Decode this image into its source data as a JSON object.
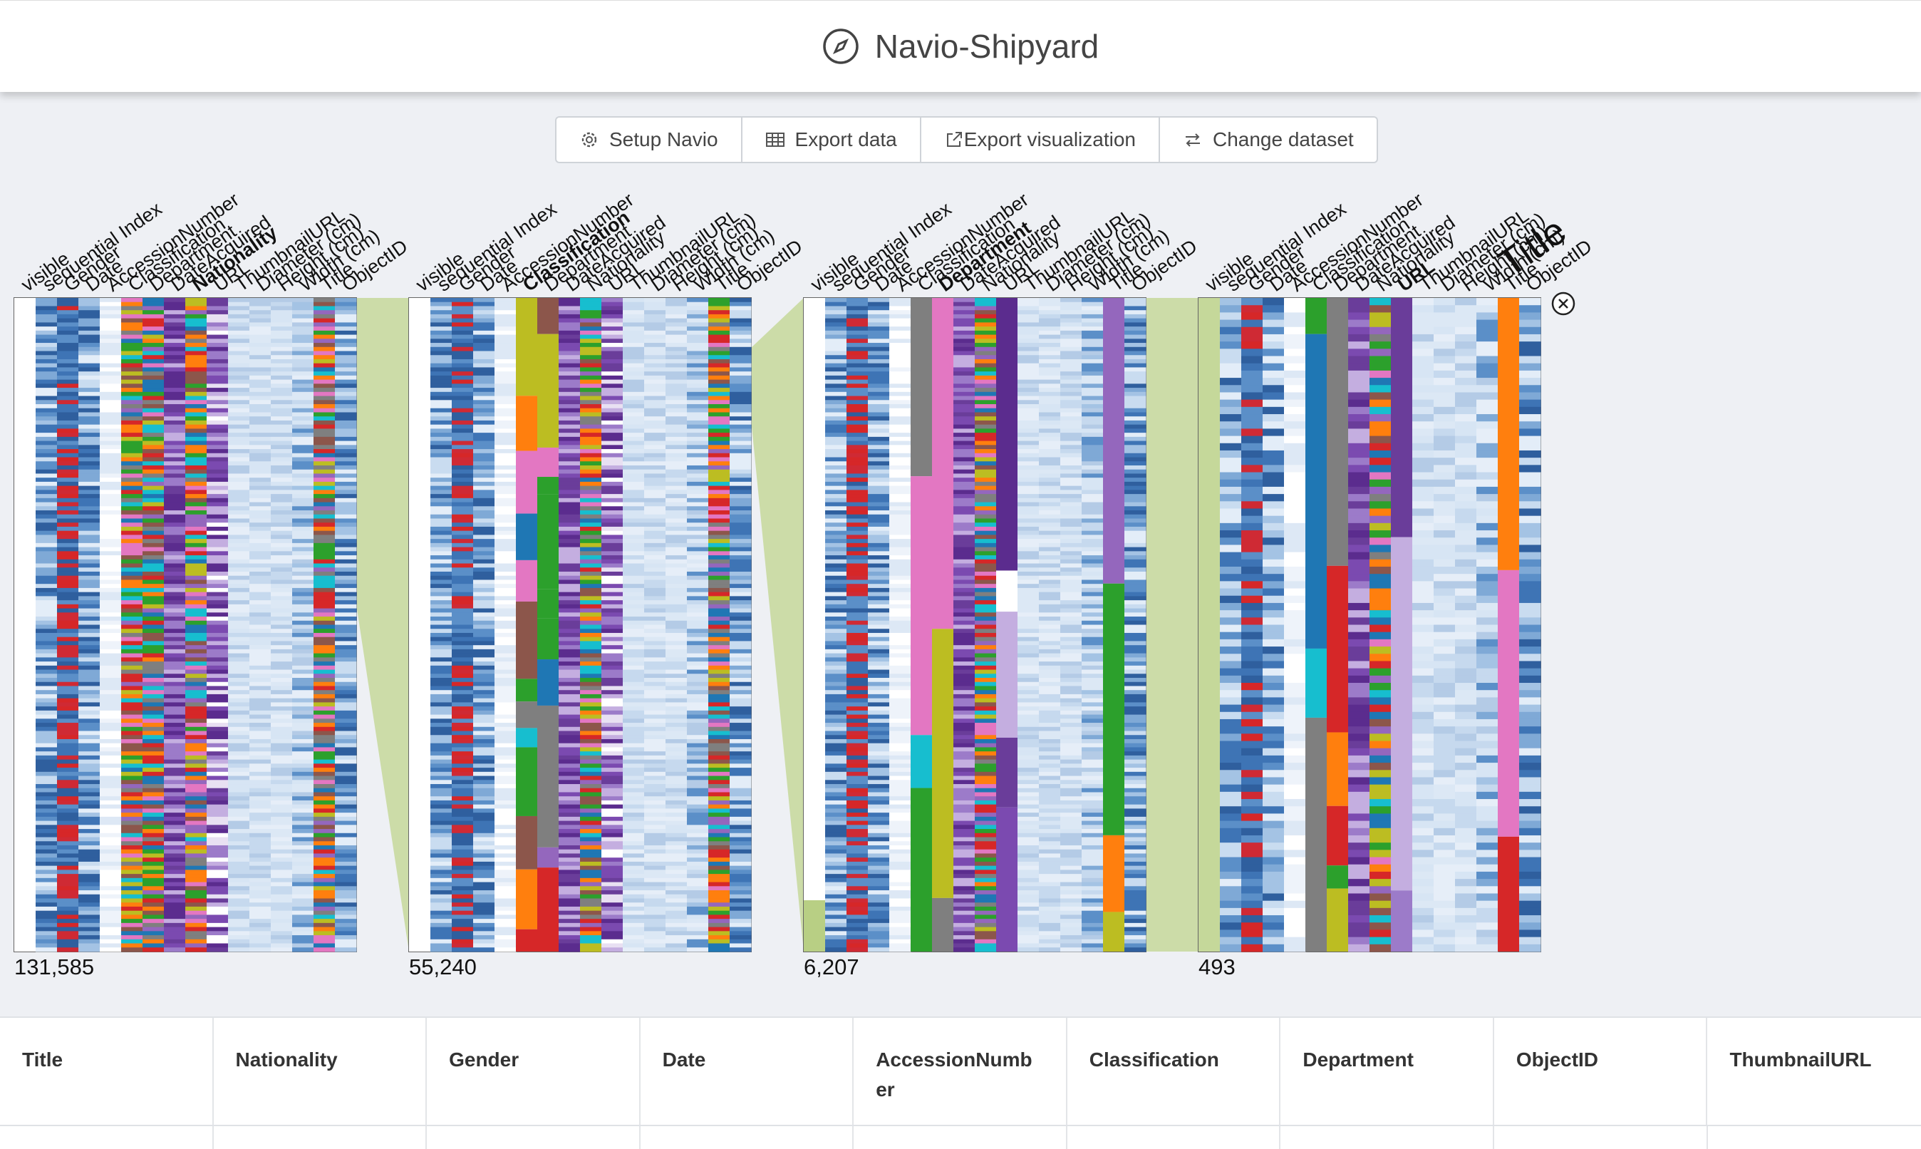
{
  "header": {
    "title": "Navio-Shipyard",
    "logo_icon": "compass-icon"
  },
  "toolbar": [
    {
      "label": "Setup Navio",
      "icon": "gear-icon"
    },
    {
      "label": "Export data",
      "icon": "table-icon"
    },
    {
      "label": "Export visualization",
      "icon": "external-link-icon"
    },
    {
      "label": "Change dataset",
      "icon": "swap-icon"
    }
  ],
  "navio": {
    "attributes": [
      "visible",
      "sequential Index",
      "Gender",
      "Date",
      "AccessionNumber",
      "Classification",
      "Department",
      "DateAcquired",
      "Nationality",
      "URL",
      "ThumbnailURL",
      "Diameter (cm)",
      "Height (cm)",
      "Width (cm)",
      "Title",
      "ObjectID"
    ],
    "levels": [
      {
        "count": "131,585",
        "highlight": "Nationality"
      },
      {
        "count": "55,240",
        "highlight": "Classification"
      },
      {
        "count": "6,207",
        "highlight": "Department"
      },
      {
        "count": "493",
        "highlight": "URL",
        "hover": "Title"
      }
    ]
  },
  "table": {
    "columns": [
      "Title",
      "Nationality",
      "Gender",
      "Date",
      "AccessionNumb er",
      "Classification",
      "Department",
      "ObjectID",
      "ThumbnailURL"
    ]
  }
}
